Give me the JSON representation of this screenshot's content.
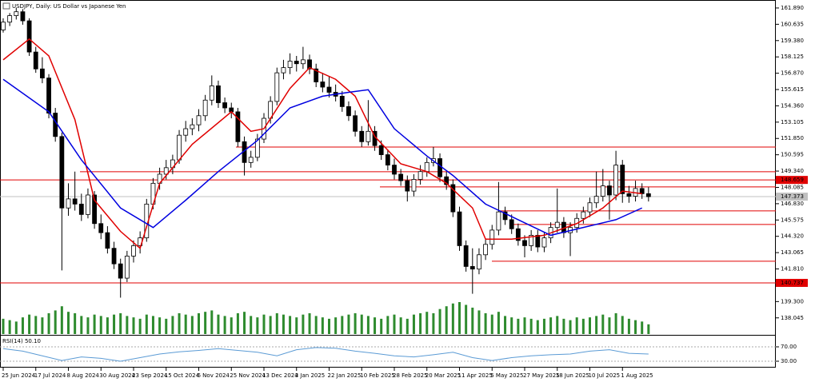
{
  "chart_data": {
    "type": "candlestick",
    "title": "USDJPY, Daily:  US Dollar vs Japanese Yen",
    "categories": [
      "25 Jun 2024",
      null,
      null,
      null,
      null,
      "17 Jul 2024",
      null,
      null,
      null,
      null,
      "8 Aug 2024",
      null,
      null,
      null,
      null,
      "30 Aug 2024",
      null,
      null,
      null,
      null,
      "23 Sep 2024",
      null,
      null,
      null,
      null,
      "15 Oct 2024",
      null,
      null,
      null,
      null,
      "6 Nov 2024",
      null,
      null,
      null,
      null,
      "25 Nov 2024",
      null,
      null,
      null,
      null,
      "13 Dec 2024",
      null,
      null,
      null,
      null,
      "3 Jan 2025",
      null,
      null,
      null,
      null,
      "22 Jan 2025",
      null,
      null,
      null,
      null,
      "10 Feb 2025",
      null,
      null,
      null,
      null,
      "28 Feb 2025",
      null,
      null,
      null,
      null,
      "20 Mar 2025",
      null,
      null,
      null,
      null,
      "11 Apr 2025",
      null,
      null,
      null,
      null,
      "5 May 2025",
      null,
      null,
      null,
      null,
      "27 May 2025",
      null,
      null,
      null,
      null,
      "18 Jun 2025",
      null,
      null,
      null,
      null,
      "10 Jul 2025",
      null,
      null,
      null,
      null,
      "1 Aug 2025",
      null,
      null,
      null,
      null
    ],
    "candles": [
      [
        160.2,
        161.1,
        160.0,
        160.8
      ],
      [
        160.8,
        161.5,
        160.5,
        161.3
      ],
      [
        161.3,
        161.9,
        161.0,
        161.6
      ],
      [
        161.6,
        161.8,
        160.6,
        160.9
      ],
      [
        160.9,
        161.1,
        158.2,
        158.5
      ],
      [
        158.5,
        158.9,
        156.9,
        157.2
      ],
      [
        157.2,
        158.1,
        156.1,
        156.5
      ],
      [
        156.5,
        156.8,
        153.4,
        153.8
      ],
      [
        153.8,
        154.2,
        151.6,
        152.0
      ],
      [
        152.0,
        152.3,
        141.7,
        146.5
      ],
      [
        146.5,
        148.4,
        145.9,
        147.2
      ],
      [
        147.2,
        149.3,
        146.3,
        146.8
      ],
      [
        146.8,
        147.6,
        145.5,
        146.0
      ],
      [
        146.0,
        148.0,
        145.7,
        147.5
      ],
      [
        147.5,
        147.8,
        144.9,
        145.3
      ],
      [
        145.3,
        146.0,
        144.1,
        144.6
      ],
      [
        144.6,
        145.1,
        143.0,
        143.4
      ],
      [
        143.4,
        143.9,
        141.8,
        142.2
      ],
      [
        142.2,
        142.6,
        139.6,
        141.1
      ],
      [
        141.1,
        143.2,
        140.8,
        142.8
      ],
      [
        142.8,
        144.0,
        142.3,
        143.6
      ],
      [
        143.6,
        144.7,
        143.0,
        144.2
      ],
      [
        144.2,
        147.2,
        143.9,
        146.8
      ],
      [
        146.8,
        148.8,
        146.4,
        148.4
      ],
      [
        148.4,
        149.6,
        147.9,
        149.1
      ],
      [
        149.1,
        150.2,
        148.7,
        149.6
      ],
      [
        149.6,
        150.6,
        149.1,
        150.2
      ],
      [
        150.2,
        152.5,
        149.9,
        152.1
      ],
      [
        152.1,
        153.2,
        151.6,
        152.6
      ],
      [
        152.6,
        153.4,
        152.1,
        152.9
      ],
      [
        152.9,
        154.1,
        152.4,
        153.6
      ],
      [
        153.6,
        155.2,
        153.2,
        154.8
      ],
      [
        154.8,
        156.7,
        154.4,
        155.9
      ],
      [
        155.9,
        156.3,
        154.2,
        154.6
      ],
      [
        154.6,
        155.0,
        153.8,
        154.2
      ],
      [
        154.2,
        154.6,
        153.4,
        153.9
      ],
      [
        153.9,
        154.2,
        151.2,
        151.6
      ],
      [
        151.6,
        152.0,
        149.0,
        150.0
      ],
      [
        150.0,
        150.9,
        149.6,
        150.4
      ],
      [
        150.4,
        152.2,
        150.1,
        151.8
      ],
      [
        151.8,
        153.8,
        151.5,
        153.4
      ],
      [
        153.4,
        155.1,
        153.0,
        154.7
      ],
      [
        154.7,
        157.3,
        154.4,
        156.9
      ],
      [
        156.9,
        157.9,
        156.4,
        157.3
      ],
      [
        157.3,
        158.4,
        156.8,
        157.8
      ],
      [
        157.8,
        158.2,
        157.0,
        157.6
      ],
      [
        157.6,
        158.9,
        157.2,
        157.9
      ],
      [
        157.9,
        158.3,
        156.8,
        157.2
      ],
      [
        157.2,
        157.6,
        155.8,
        156.2
      ],
      [
        156.2,
        156.9,
        155.4,
        155.8
      ],
      [
        155.8,
        156.6,
        155.0,
        155.4
      ],
      [
        155.4,
        156.0,
        154.7,
        155.1
      ],
      [
        155.1,
        155.5,
        153.9,
        154.3
      ],
      [
        154.3,
        154.7,
        153.2,
        153.6
      ],
      [
        153.6,
        154.0,
        152.0,
        152.4
      ],
      [
        152.4,
        152.8,
        151.2,
        151.6
      ],
      [
        151.6,
        154.8,
        151.3,
        152.4
      ],
      [
        152.4,
        152.8,
        150.9,
        151.3
      ],
      [
        151.3,
        151.7,
        150.2,
        150.6
      ],
      [
        150.6,
        151.0,
        149.4,
        149.8
      ],
      [
        149.8,
        150.3,
        148.7,
        149.1
      ],
      [
        149.1,
        149.5,
        148.2,
        148.6
      ],
      [
        148.6,
        149.0,
        147.0,
        147.8
      ],
      [
        147.8,
        149.1,
        147.4,
        148.7
      ],
      [
        148.7,
        149.8,
        148.3,
        149.3
      ],
      [
        149.3,
        150.4,
        148.9,
        150.0
      ],
      [
        150.0,
        151.2,
        149.7,
        150.3
      ],
      [
        150.3,
        150.7,
        148.5,
        148.9
      ],
      [
        148.9,
        149.3,
        147.9,
        148.3
      ],
      [
        148.3,
        148.7,
        145.8,
        146.2
      ],
      [
        146.2,
        146.6,
        143.2,
        143.6
      ],
      [
        143.6,
        144.0,
        141.6,
        142.0
      ],
      [
        142.0,
        143.4,
        139.9,
        141.8
      ],
      [
        141.8,
        143.4,
        141.4,
        142.9
      ],
      [
        142.9,
        144.1,
        142.5,
        143.7
      ],
      [
        143.7,
        145.2,
        143.3,
        144.8
      ],
      [
        144.8,
        148.5,
        144.4,
        146.2
      ],
      [
        146.2,
        146.6,
        145.2,
        145.6
      ],
      [
        145.6,
        146.0,
        144.5,
        144.9
      ],
      [
        144.9,
        145.3,
        143.6,
        144.0
      ],
      [
        144.0,
        144.4,
        142.7,
        143.6
      ],
      [
        143.6,
        144.8,
        143.2,
        144.4
      ],
      [
        144.4,
        144.8,
        143.1,
        143.5
      ],
      [
        143.5,
        144.6,
        143.1,
        144.2
      ],
      [
        144.2,
        145.4,
        143.8,
        145.0
      ],
      [
        145.0,
        148.0,
        144.6,
        145.4
      ],
      [
        145.4,
        145.8,
        144.2,
        144.6
      ],
      [
        144.6,
        145.4,
        142.8,
        145.0
      ],
      [
        145.0,
        146.1,
        144.6,
        145.7
      ],
      [
        145.7,
        146.6,
        145.3,
        146.2
      ],
      [
        146.2,
        147.3,
        145.8,
        146.9
      ],
      [
        146.9,
        149.3,
        146.5,
        147.4
      ],
      [
        147.4,
        149.5,
        147.0,
        148.2
      ],
      [
        148.2,
        148.6,
        145.6,
        147.5
      ],
      [
        147.5,
        150.9,
        147.1,
        149.8
      ],
      [
        149.8,
        150.2,
        146.9,
        147.6
      ],
      [
        147.6,
        148.2,
        146.9,
        147.4
      ],
      [
        147.4,
        148.6,
        147.0,
        148.0
      ],
      [
        148.0,
        148.4,
        147.2,
        147.6
      ],
      [
        147.6,
        148.1,
        147.0,
        147.37
      ]
    ],
    "volume": [
      22,
      20,
      18,
      24,
      28,
      26,
      24,
      30,
      34,
      40,
      32,
      30,
      26,
      24,
      28,
      26,
      24,
      28,
      30,
      26,
      24,
      22,
      28,
      26,
      24,
      22,
      26,
      30,
      28,
      26,
      30,
      32,
      34,
      28,
      26,
      24,
      30,
      32,
      26,
      24,
      28,
      26,
      30,
      28,
      26,
      24,
      28,
      30,
      26,
      24,
      22,
      24,
      26,
      28,
      30,
      28,
      26,
      24,
      22,
      26,
      28,
      24,
      22,
      28,
      30,
      32,
      30,
      36,
      40,
      44,
      46,
      42,
      38,
      34,
      30,
      28,
      32,
      26,
      24,
      22,
      24,
      22,
      20,
      22,
      24,
      26,
      22,
      20,
      24,
      22,
      24,
      26,
      28,
      24,
      30,
      26,
      22,
      20,
      18,
      14
    ],
    "volume_color": "#2e8b2e",
    "up_color": "#ffffff",
    "down_color": "#000000",
    "moving_averages": [
      {
        "color": "#e00000",
        "x": [
          0,
          4,
          7,
          11,
          14,
          18,
          21,
          24,
          29,
          35,
          38,
          40,
          44,
          47,
          51,
          54,
          57,
          61,
          65,
          68,
          72,
          74,
          78,
          83,
          88,
          92,
          95,
          98
        ],
        "values": [
          157.9,
          159.5,
          158.2,
          153.3,
          147.1,
          144.7,
          143.4,
          148.4,
          151.4,
          153.9,
          152.4,
          152.6,
          155.7,
          157.3,
          156.4,
          155.1,
          152.0,
          149.9,
          149.3,
          148.4,
          146.5,
          144.1,
          144.1,
          144.4,
          145.3,
          146.5,
          147.8,
          147.6
        ]
      },
      {
        "color": "#0000e0",
        "x": [
          0,
          7,
          12,
          18,
          23,
          28,
          33,
          39,
          44,
          49,
          53,
          56,
          60,
          65,
          69,
          74,
          79,
          84,
          89,
          94,
          98
        ],
        "values": [
          156.4,
          153.9,
          150.2,
          146.5,
          145.0,
          147.1,
          149.3,
          151.7,
          154.2,
          155.1,
          155.4,
          155.6,
          152.6,
          150.5,
          149.0,
          146.8,
          145.6,
          144.4,
          145.0,
          145.6,
          146.5
        ]
      }
    ],
    "levels": [
      {
        "value": 151.19,
        "color": "#e00000"
      },
      {
        "value": 149.29,
        "color": "#e00000"
      },
      {
        "value": 148.659,
        "label": "148.659",
        "color": "#e00000"
      },
      {
        "value": 148.12,
        "color": "#e00000"
      },
      {
        "value": 147.373,
        "label": "147.373",
        "color": "#c0c0c0"
      },
      {
        "value": 146.28,
        "color": "#e00000"
      },
      {
        "value": 145.23,
        "color": "#e00000"
      },
      {
        "value": 142.4,
        "color": "#e00000"
      },
      {
        "value": 140.737,
        "label": "140.737",
        "color": "#e00000"
      }
    ],
    "ylim": [
      136.8,
      162.38
    ],
    "yticks": [
      {
        "value": 161.89,
        "label": "161.890"
      },
      {
        "value": 160.635,
        "label": "160.635"
      },
      {
        "value": 159.38,
        "label": "159.380"
      },
      {
        "value": 158.125,
        "label": "158.125"
      },
      {
        "value": 156.87,
        "label": "156.870"
      },
      {
        "value": 155.615,
        "label": "155.615"
      },
      {
        "value": 154.36,
        "label": "154.360"
      },
      {
        "value": 153.105,
        "label": "153.105"
      },
      {
        "value": 151.85,
        "label": "151.850"
      },
      {
        "value": 150.595,
        "label": "150.595"
      },
      {
        "value": 149.34,
        "label": "149.340"
      },
      {
        "value": 148.085,
        "label": "148.085"
      },
      {
        "value": 146.83,
        "label": "146.830"
      },
      {
        "value": 145.575,
        "label": "145.575"
      },
      {
        "value": 144.32,
        "label": "144.320"
      },
      {
        "value": 143.065,
        "label": "143.065"
      },
      {
        "value": 141.81,
        "label": "141.810"
      },
      {
        "value": 140.555,
        "label": "140.555"
      },
      {
        "value": 139.3,
        "label": "139.300"
      },
      {
        "value": 138.045,
        "label": "138.045"
      }
    ],
    "rsi": {
      "title": "RSI(14) 50.10",
      "color": "#5b9bd5",
      "x": [
        0,
        3,
        6,
        9,
        12,
        15,
        18,
        21,
        24,
        27,
        30,
        33,
        36,
        39,
        42,
        45,
        48,
        51,
        54,
        57,
        60,
        63,
        66,
        69,
        72,
        75,
        78,
        81,
        84,
        87,
        90,
        93,
        96,
        99
      ],
      "values": [
        65,
        58,
        45,
        32,
        42,
        38,
        30,
        40,
        50,
        56,
        60,
        65,
        60,
        55,
        45,
        62,
        68,
        66,
        58,
        52,
        45,
        42,
        48,
        55,
        40,
        32,
        40,
        45,
        48,
        50,
        58,
        62,
        52,
        50
      ],
      "ylim": [
        16.7,
        98.9
      ],
      "yticks": [
        {
          "value": 70,
          "label": "70.00"
        },
        {
          "value": 30,
          "label": "30.00"
        }
      ]
    }
  }
}
